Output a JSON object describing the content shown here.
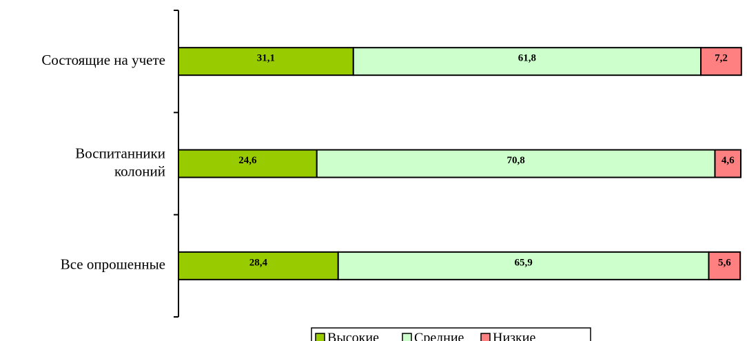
{
  "chart_data": {
    "type": "stacked_barh",
    "categories": [
      "Состоящие на учете",
      "Воспитанники\nколоний",
      "Все опрошенные"
    ],
    "series": [
      {
        "name": "Высокие",
        "color": "#99cc00",
        "values": [
          31.1,
          24.6,
          28.4
        ],
        "value_labels": [
          "31,1",
          "24,6",
          "28,4"
        ]
      },
      {
        "name": "Средние",
        "color": "#ccffcc",
        "values": [
          61.8,
          70.8,
          65.9
        ],
        "value_labels": [
          "61,8",
          "70,8",
          "65,9"
        ]
      },
      {
        "name": "Низкие",
        "color": "#ff8080",
        "values": [
          7.2,
          4.6,
          5.6
        ],
        "value_labels": [
          "7,2",
          "4,6",
          "5,6"
        ]
      }
    ],
    "xlim": [
      0,
      100
    ],
    "legend": "bottom"
  }
}
